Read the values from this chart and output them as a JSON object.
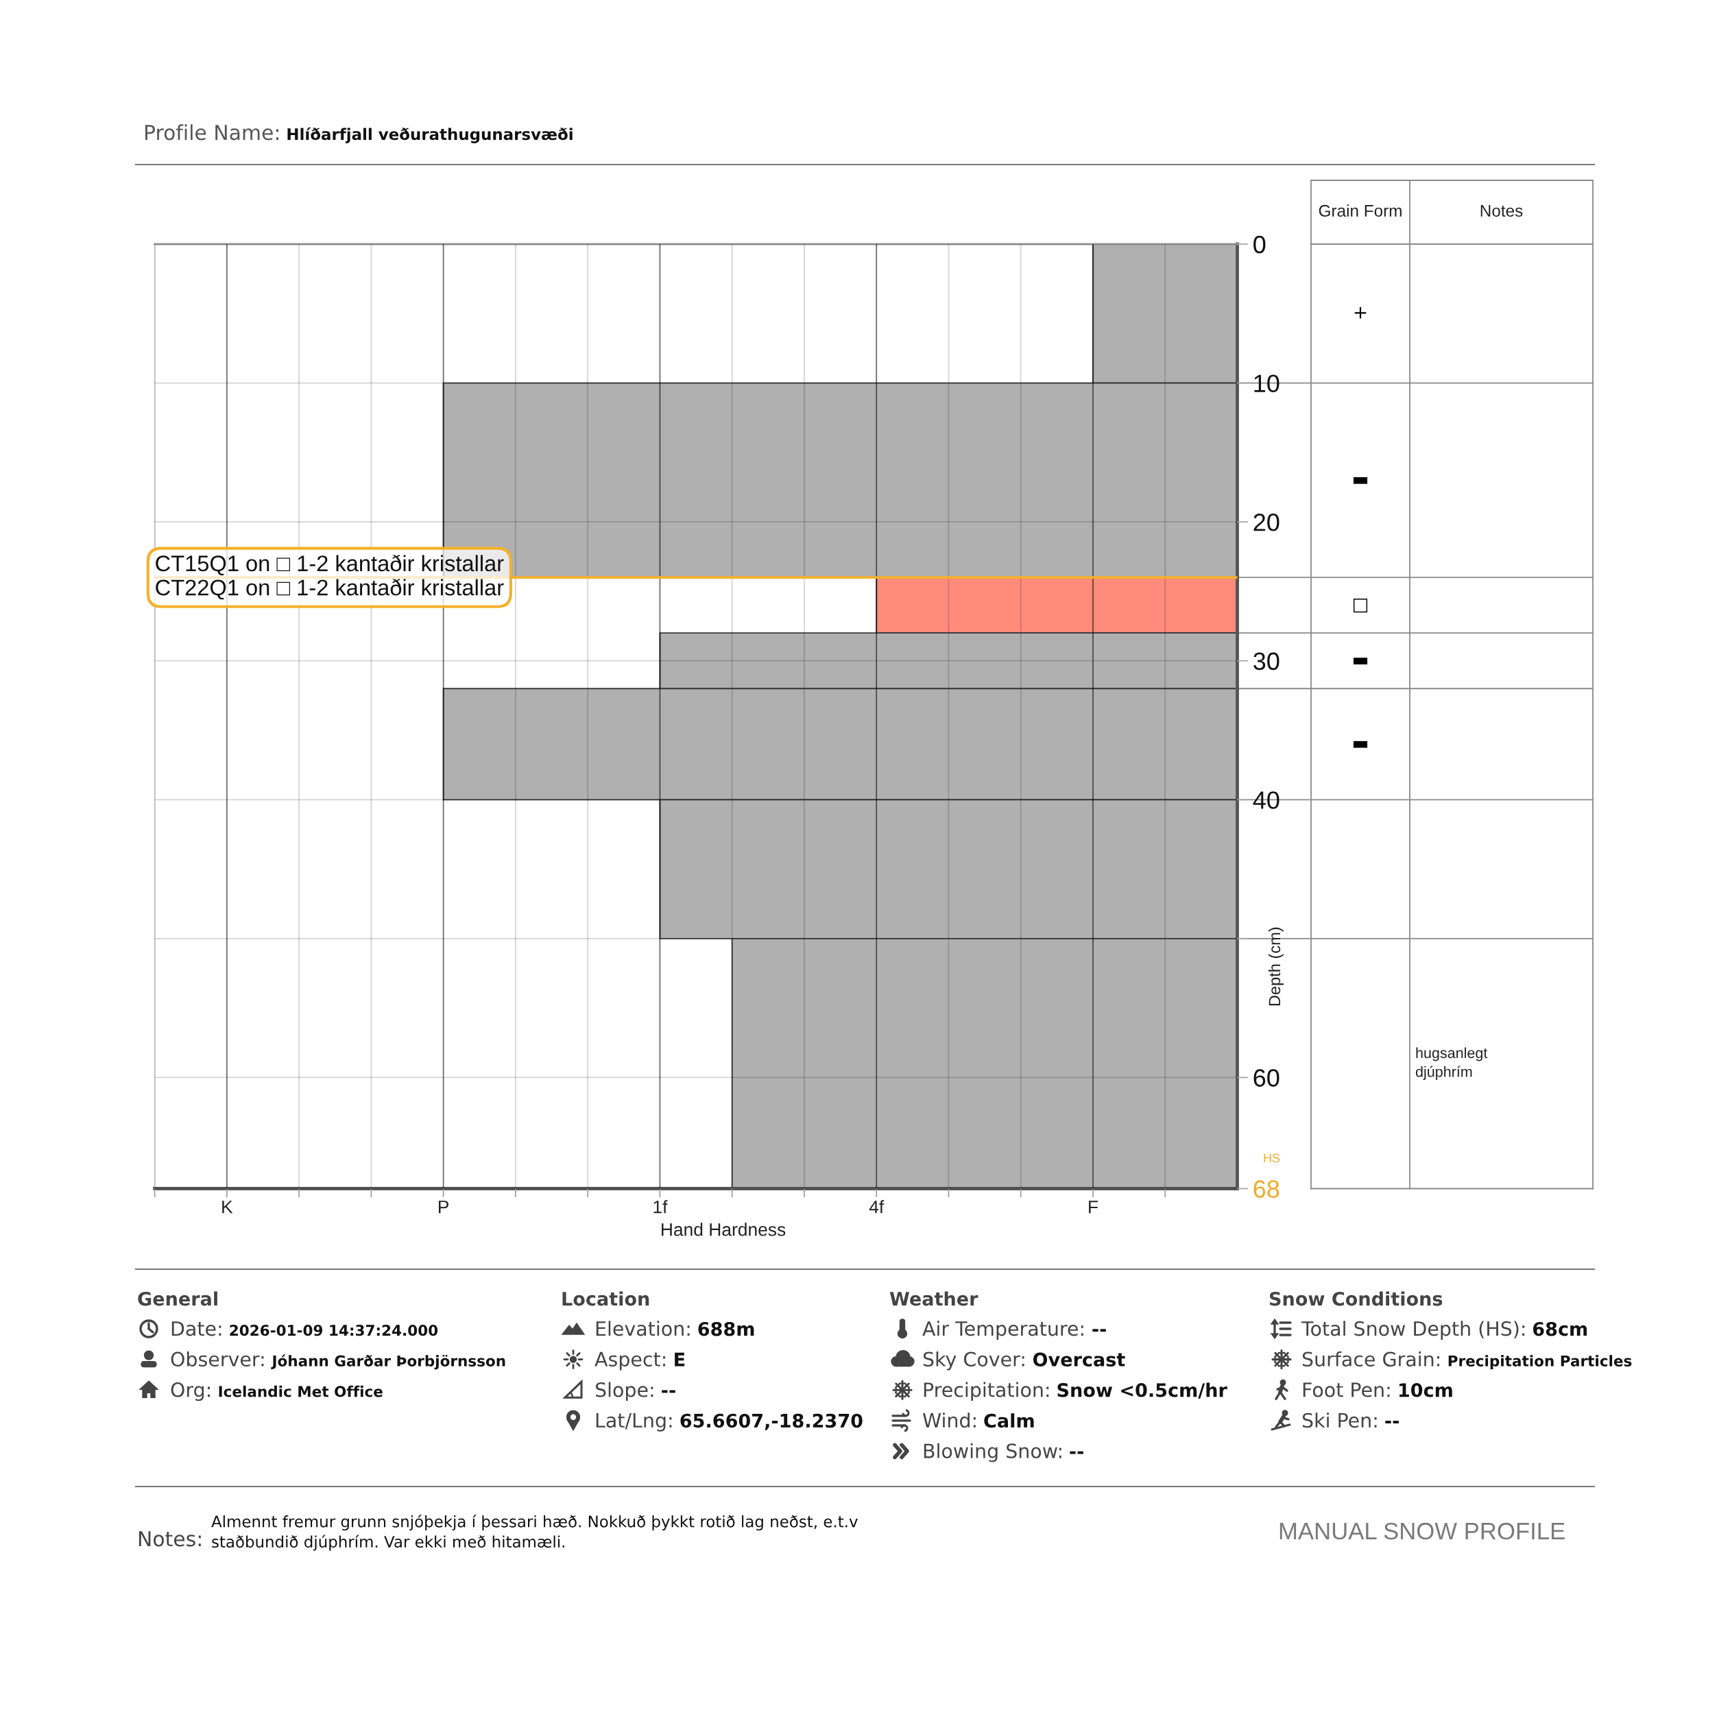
{
  "chart_data": [
    {
      "type": "histogram",
      "orientation": "horizontal",
      "bins": [
        0,
        10,
        24,
        28,
        32,
        40,
        50,
        68
      ],
      "base": [
        7,
        -2,
        4,
        1,
        -2,
        1,
        2
      ],
      "values": [
        2,
        11,
        5,
        8,
        11,
        8,
        7
      ],
      "colors": [
        "#b0b0b0",
        "#b0b0b0",
        "#fd8b7c",
        "#b0b0b0",
        "#b0b0b0",
        "#b0b0b0",
        "#b0b0b0"
      ],
      "xlim": [
        -6,
        9
      ],
      "xticks": [
        {
          "value": -6,
          "label": null
        },
        {
          "value": -5,
          "label": "K"
        },
        {
          "value": -4,
          "label": null
        },
        {
          "value": -3,
          "label": null
        },
        {
          "value": -2,
          "label": "P"
        },
        {
          "value": -1,
          "label": null
        },
        {
          "value": 0,
          "label": null
        },
        {
          "value": 1,
          "label": "1f"
        },
        {
          "value": 2,
          "label": null
        },
        {
          "value": 3,
          "label": null
        },
        {
          "value": 4,
          "label": "4f"
        },
        {
          "value": 5,
          "label": null
        },
        {
          "value": 6,
          "label": null
        },
        {
          "value": 7,
          "label": "F"
        },
        {
          "value": 8,
          "label": null
        }
      ],
      "ylim": [
        68,
        0
      ],
      "yticks": [
        0,
        10,
        20,
        30,
        40,
        {
          "value": 50,
          "label": null
        },
        60,
        68
      ],
      "xlabel": "Hand Hardness",
      "ylabel": "Depth (cm)",
      "grid": true,
      "ref_lines": [
        {
          "axis": "y",
          "value": 24,
          "label": "CT15Q1 on □ 1-2 kantaðir kristallar\nCT22Q1 on □ 1-2 kantaðir kristallar",
          "color": "#f4b12c"
        }
      ],
      "annotations": [
        "Grain Form",
        "Notes",
        "HS",
        "+",
        "▬",
        "□",
        "▬",
        "▬",
        "hugsanlegt\ndjúphrím"
      ]
    },
    {
      "type": "other",
      "annotations": [
        "Profile Name:",
        "Hlíðarfjall veðurathugunarsvæði",
        "General",
        "Date:",
        "2026-01-09 14:37:24.000",
        "Observer:",
        "Jóhann Garðar Þorbjörnsson",
        "Org:",
        "Icelandic Met Office",
        "Location",
        "Elevation:",
        "688m",
        "Aspect:",
        "E",
        "Slope:",
        "--",
        "Lat/Lng:",
        "65.6607,-18.2370",
        "Weather",
        "Air Temperature:",
        "--",
        "Sky Cover:",
        "Overcast",
        "Precipitation:",
        "Snow <0.5cm/hr",
        "Wind:",
        "Calm",
        "Blowing Snow:",
        "--",
        "Snow Conditions",
        "Total Snow Depth (HS):",
        "68cm",
        "Surface Grain:",
        "Precipitation Particles",
        "Foot Pen:",
        "10cm",
        "Ski Pen:",
        "--",
        "Notes:",
        "Almennt fremur grunn snjóþekja í þessari hæð. Nokkuð þykkt rotið lag neðst, e.t.v\nstaðbundið djúphrím. Var ekki með hitamæli.",
        "MANUAL SNOW PROFILE"
      ]
    }
  ]
}
